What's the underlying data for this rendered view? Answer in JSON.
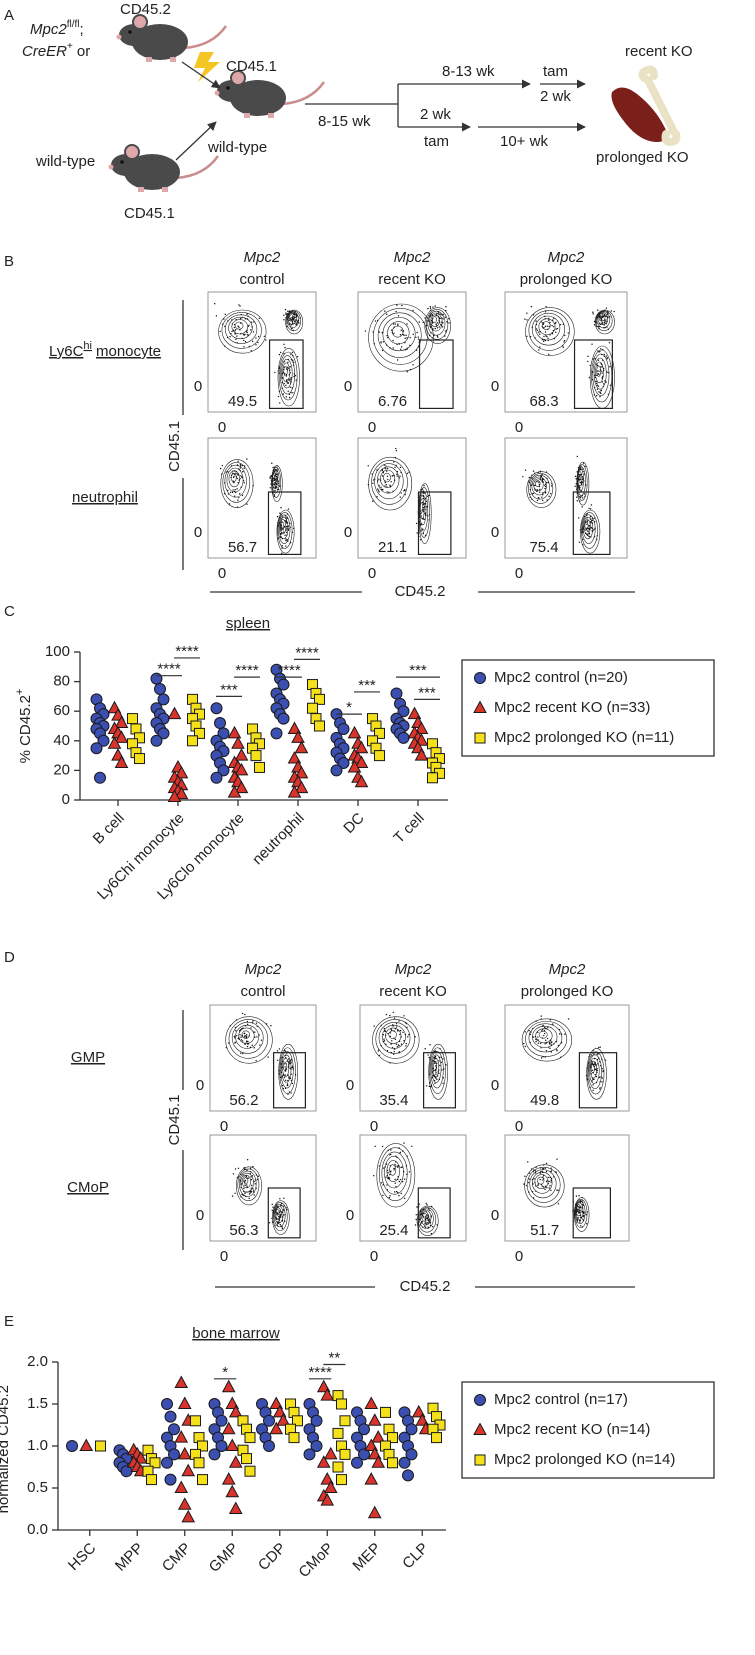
{
  "panel_labels": [
    "A",
    "B",
    "C",
    "D",
    "E"
  ],
  "schematic": {
    "donor_gene": "Mpc2",
    "donor_gene_sup": "fl/fl",
    "donor_sep": ";",
    "donor_cre": "CreER",
    "donor_cre_sup": "+",
    "donor_or": "or",
    "donor_marker": "CD45.2",
    "recipient_marker": "CD45.1",
    "recipient": "wild-type",
    "competitor": "wild-type",
    "competitor_marker": "CD45.1",
    "engraft_time": "8-15 wk",
    "recent_wait": "8-13 wk",
    "recent_tam": "tam",
    "recent_tam_time": "2 wk",
    "prolonged_wait": "2 wk",
    "prolonged_tam": "tam",
    "prolonged_time": "10+ wk",
    "recent_label": "recent KO",
    "prolonged_label": "prolonged KO"
  },
  "flow_spleen": {
    "columns": [
      {
        "gene": "Mpc2",
        "label": "control"
      },
      {
        "gene": "Mpc2",
        "label": "recent KO"
      },
      {
        "gene": "Mpc2",
        "label": "prolonged KO"
      }
    ],
    "rows": [
      {
        "label": "Ly6C",
        "label_sup": "hi",
        "label_tail": "monocyte",
        "gates": [
          49.5,
          6.76,
          68.3
        ]
      },
      {
        "label": "neutrophil",
        "gates": [
          56.7,
          21.1,
          75.4
        ]
      }
    ],
    "y_label": "CD45.1",
    "x_label": "CD45.2",
    "axis_zero": 0
  },
  "flow_marrow": {
    "columns": [
      {
        "gene": "Mpc2",
        "label": "control"
      },
      {
        "gene": "Mpc2",
        "label": "recent KO"
      },
      {
        "gene": "Mpc2",
        "label": "prolonged KO"
      }
    ],
    "rows": [
      {
        "label": "GMP",
        "gates": [
          56.2,
          35.4,
          49.8
        ]
      },
      {
        "label": "CMoP",
        "gates": [
          56.3,
          25.4,
          51.7
        ]
      }
    ],
    "y_label": "CD45.1",
    "x_label": "CD45.2",
    "axis_zero": 0
  },
  "chart_data": [
    {
      "type": "dotplot",
      "title": "spleen",
      "y_label": "% CD45.2",
      "y_label_sup": "+",
      "categories": [
        "B cell",
        "Ly6Chi monocyte",
        "Ly6Clo monocyte",
        "neutrophil",
        "DC",
        "T cell"
      ],
      "ylim": [
        0,
        100
      ],
      "yticks": [
        0,
        20,
        40,
        60,
        80,
        100
      ],
      "legend": "right",
      "series": [
        {
          "name": "Mpc2 control (n=20)",
          "color": "#3b4fb0",
          "marker": "circle",
          "values": [
            [
              68,
              62,
              58,
              55,
              52,
              50,
              48,
              45,
              40,
              35,
              15
            ],
            [
              82,
              75,
              68,
              62,
              58,
              55,
              52,
              48,
              45,
              40
            ],
            [
              62,
              52,
              45,
              40,
              36,
              33,
              30,
              25,
              20,
              15
            ],
            [
              88,
              82,
              78,
              72,
              68,
              65,
              62,
              58,
              55,
              45
            ],
            [
              58,
              52,
              48,
              42,
              38,
              35,
              32,
              28,
              25,
              20
            ],
            [
              72,
              65,
              60,
              55,
              52,
              50,
              48,
              45,
              42
            ]
          ]
        },
        {
          "name": "Mpc2 recent KO (n=33)",
          "color": "#d8342c",
          "marker": "triangle",
          "values": [
            [
              62,
              57,
              52,
              48,
              45,
              42,
              38,
              30,
              25
            ],
            [
              58,
              22,
              18,
              15,
              12,
              10,
              8,
              6,
              4,
              2
            ],
            [
              45,
              38,
              30,
              25,
              22,
              20,
              15,
              12,
              8,
              5
            ],
            [
              48,
              42,
              35,
              28,
              22,
              18,
              15,
              12,
              8,
              5
            ],
            [
              45,
              38,
              35,
              30,
              28,
              25,
              22,
              15,
              12
            ],
            [
              58,
              52,
              48,
              45,
              42,
              40,
              38,
              35,
              30
            ]
          ]
        },
        {
          "name": "Mpc2 prolonged KO (n=11)",
          "color": "#f5e11a",
          "marker": "square",
          "values": [
            [
              55,
              48,
              42,
              38,
              32,
              28
            ],
            [
              68,
              62,
              58,
              55,
              50,
              45,
              40
            ],
            [
              48,
              42,
              38,
              35,
              30,
              22
            ],
            [
              78,
              72,
              68,
              62,
              55,
              50
            ],
            [
              55,
              50,
              45,
              40,
              35,
              30
            ],
            [
              38,
              32,
              28,
              25,
              22,
              18,
              15
            ]
          ]
        }
      ],
      "annotations": [
        "****",
        "****",
        "***",
        "****",
        "****",
        "****",
        "*",
        "***",
        "***",
        "***"
      ]
    },
    {
      "type": "dotplot",
      "title": "bone marrow",
      "y_label": "normalized CD45.2",
      "y_label_sup": "+",
      "categories": [
        "HSC",
        "MPP",
        "CMP",
        "GMP",
        "CDP",
        "CMoP",
        "MEP",
        "CLP"
      ],
      "ylim": [
        0,
        2
      ],
      "yticks": [
        {
          "value": 0,
          "label": "0.0"
        },
        {
          "value": 0.5,
          "label": "0.5"
        },
        {
          "value": 1,
          "label": "1.0"
        },
        {
          "value": 1.5,
          "label": "1.5"
        },
        {
          "value": 2,
          "label": "2.0"
        }
      ],
      "legend": "right",
      "series": [
        {
          "name": "Mpc2 control (n=17)",
          "color": "#3b4fb0",
          "marker": "circle",
          "values": [
            [
              1.0
            ],
            [
              0.95,
              0.9,
              0.85,
              0.8,
              0.75,
              0.7
            ],
            [
              1.5,
              1.35,
              1.2,
              1.1,
              1.0,
              0.9,
              0.8,
              0.6
            ],
            [
              1.5,
              1.4,
              1.3,
              1.2,
              1.1,
              1.0,
              0.9
            ],
            [
              1.5,
              1.4,
              1.3,
              1.2,
              1.1,
              1.0
            ],
            [
              1.5,
              1.4,
              1.3,
              1.2,
              1.1,
              1.0,
              0.9
            ],
            [
              1.4,
              1.3,
              1.2,
              1.1,
              1.0,
              0.9,
              0.8
            ],
            [
              1.4,
              1.3,
              1.2,
              1.1,
              1.0,
              0.9,
              0.8,
              0.65
            ]
          ]
        },
        {
          "name": "Mpc2 recent KO (n=14)",
          "color": "#d8342c",
          "marker": "triangle",
          "values": [
            [
              1.0
            ],
            [
              0.95,
              0.9,
              0.85,
              0.8,
              0.75,
              0.7
            ],
            [
              1.75,
              1.5,
              1.3,
              1.1,
              0.9,
              0.7,
              0.5,
              0.3,
              0.15
            ],
            [
              1.7,
              1.5,
              1.4,
              1.2,
              1.0,
              0.8,
              0.6,
              0.45,
              0.25
            ],
            [
              1.5,
              1.4,
              1.3,
              1.2
            ],
            [
              1.7,
              1.6,
              0.9,
              0.8,
              0.6,
              0.5,
              0.4,
              0.35
            ],
            [
              1.5,
              1.3,
              1.1,
              1.0,
              0.9,
              0.8,
              0.6,
              0.2
            ],
            [
              1.4,
              1.3,
              1.2
            ]
          ]
        },
        {
          "name": "Mpc2 prolonged KO (n=14)",
          "color": "#f5e11a",
          "marker": "square",
          "values": [
            [
              1.0
            ],
            [
              0.95,
              0.85,
              0.8,
              0.7,
              0.6
            ],
            [
              1.3,
              1.1,
              1.0,
              0.9,
              0.8,
              0.6
            ],
            [
              1.3,
              1.2,
              1.1,
              0.95,
              0.85,
              0.7
            ],
            [
              1.5,
              1.4,
              1.3,
              1.2,
              1.1
            ],
            [
              1.6,
              1.5,
              1.3,
              1.15,
              1.0,
              0.9,
              0.75,
              0.6
            ],
            [
              1.4,
              1.2,
              1.1,
              1.0,
              0.9,
              0.8
            ],
            [
              1.45,
              1.35,
              1.25,
              1.2,
              1.1
            ]
          ]
        }
      ],
      "annotations": [
        "*",
        "****",
        "**"
      ]
    }
  ]
}
